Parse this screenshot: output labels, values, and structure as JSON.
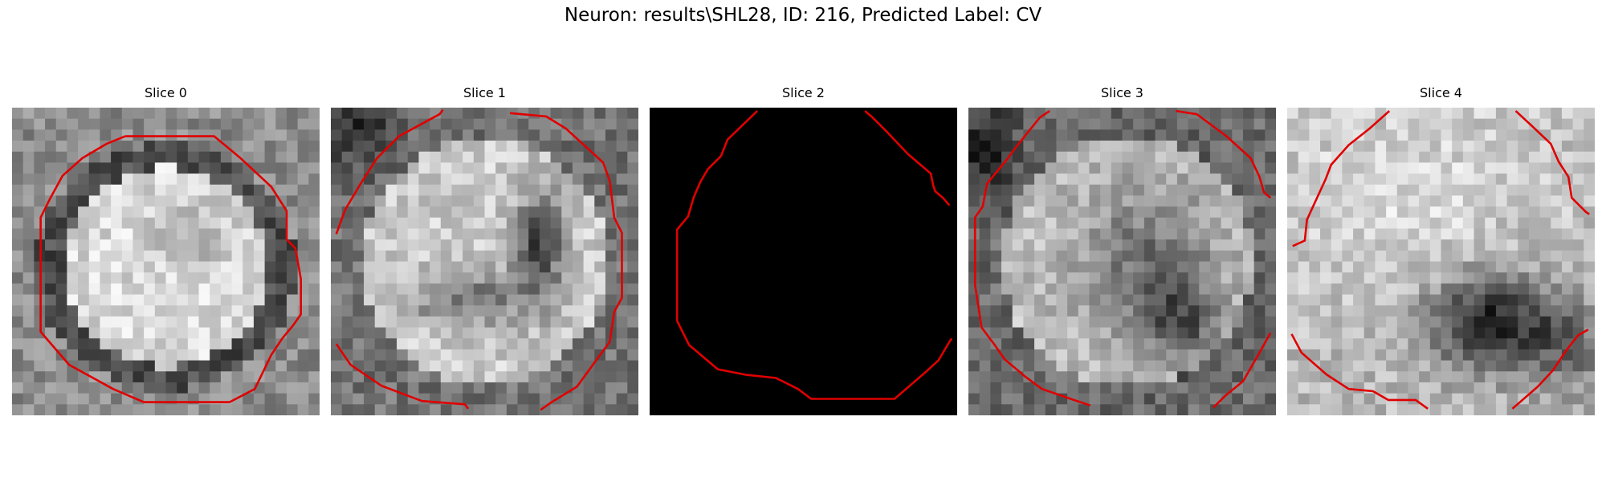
{
  "figure": {
    "title": "Neuron: results\\SHL28, ID: 216, Predicted Label: CV"
  },
  "contour_color": "#e00000",
  "panels": [
    {
      "label": "Slice 0",
      "image": "grayscale-cell-texture",
      "appearance": "bright round cell body with dark rim",
      "contour": "closed"
    },
    {
      "label": "Slice 1",
      "image": "grayscale-cell-texture",
      "appearance": "bright cell with darker center",
      "contour": "partial"
    },
    {
      "label": "Slice 2",
      "image": "blank-black",
      "appearance": "black",
      "contour": "partial"
    },
    {
      "label": "Slice 3",
      "image": "grayscale-cell-texture",
      "appearance": "mottled cell with darker center",
      "contour": "partial"
    },
    {
      "label": "Slice 4",
      "image": "grayscale-cell-texture",
      "appearance": "bright upper region, dark lower-right",
      "contour": "partial"
    }
  ]
}
